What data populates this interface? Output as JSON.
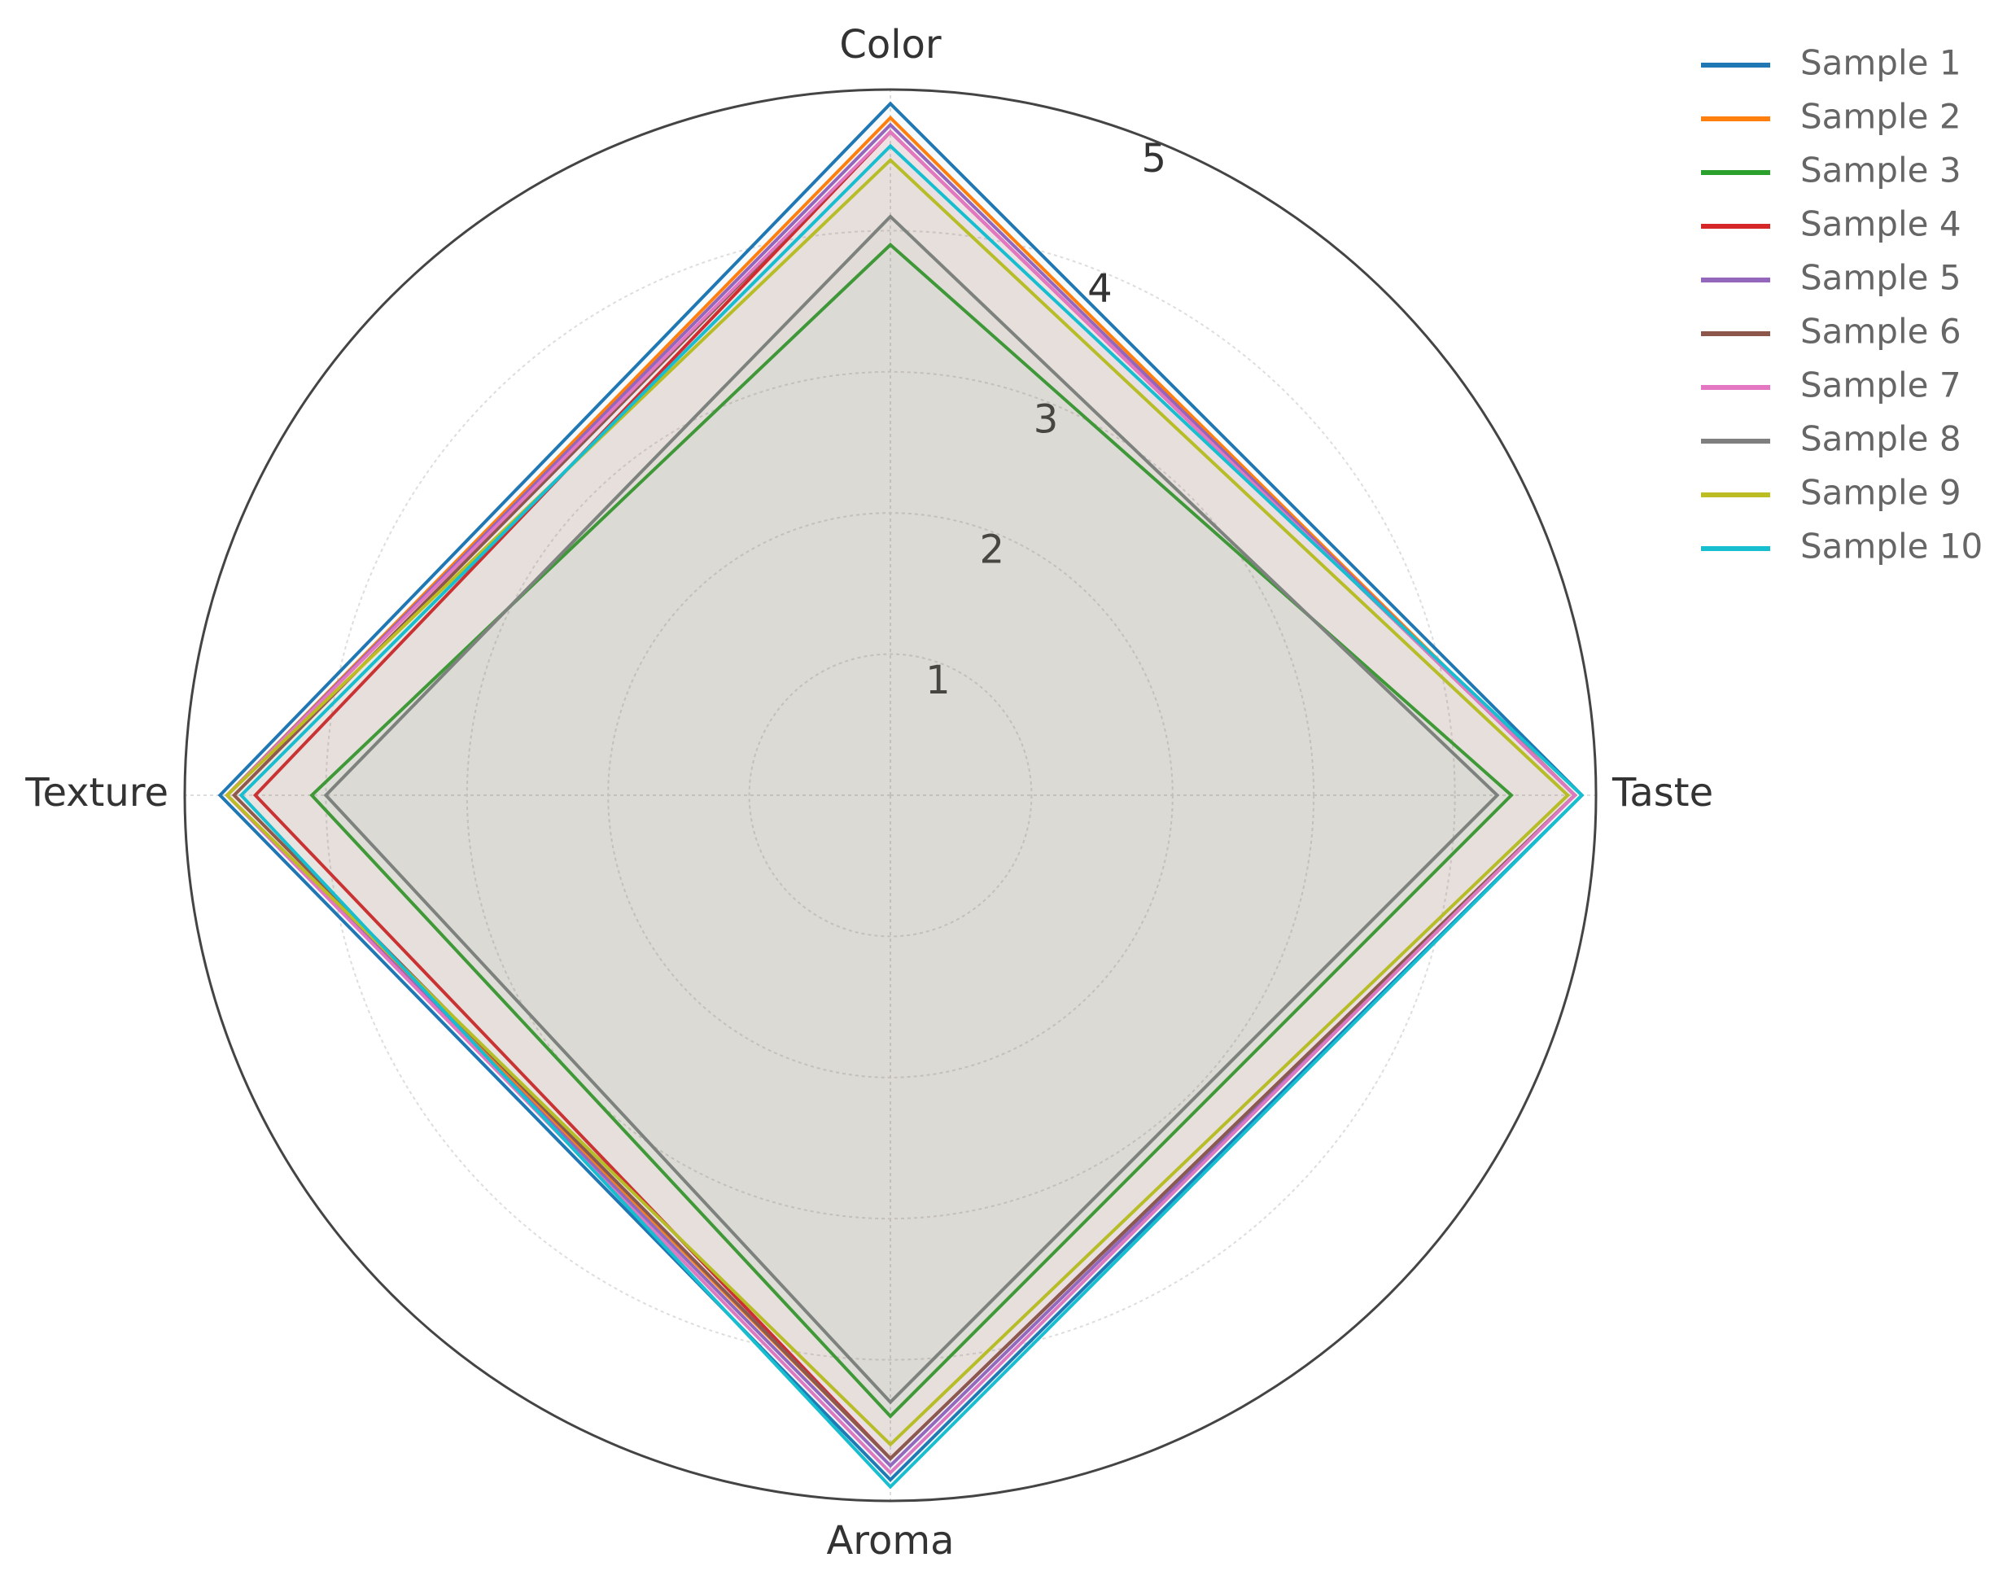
{
  "chart_data": {
    "type": "radar",
    "categories": [
      "Color",
      "Taste",
      "Aroma",
      "Texture"
    ],
    "series": [
      {
        "name": "Sample 1",
        "color": "#1f77b4",
        "values": [
          4.9,
          4.9,
          4.85,
          4.75
        ]
      },
      {
        "name": "Sample 2",
        "color": "#ff7f0e",
        "values": [
          4.8,
          4.85,
          4.7,
          4.7
        ]
      },
      {
        "name": "Sample 3",
        "color": "#2ca02c",
        "values": [
          3.9,
          4.4,
          4.4,
          4.1
        ]
      },
      {
        "name": "Sample 4",
        "color": "#d62728",
        "values": [
          4.7,
          4.85,
          4.7,
          4.5
        ]
      },
      {
        "name": "Sample 5",
        "color": "#9467bd",
        "values": [
          4.75,
          4.85,
          4.75,
          4.7
        ]
      },
      {
        "name": "Sample 6",
        "color": "#8c564b",
        "values": [
          4.7,
          4.85,
          4.7,
          4.65
        ]
      },
      {
        "name": "Sample 7",
        "color": "#e377c2",
        "values": [
          4.7,
          4.85,
          4.8,
          4.7
        ]
      },
      {
        "name": "Sample 8",
        "color": "#7f7f7f",
        "values": [
          4.1,
          4.3,
          4.3,
          4.0
        ]
      },
      {
        "name": "Sample 9",
        "color": "#bcbd22",
        "values": [
          4.5,
          4.8,
          4.6,
          4.7
        ]
      },
      {
        "name": "Sample 10",
        "color": "#17becf",
        "values": [
          4.6,
          4.9,
          4.9,
          4.6
        ]
      }
    ],
    "rlim": [
      0,
      5
    ],
    "rticks": [
      1,
      2,
      3,
      4,
      5
    ],
    "grid": true,
    "legend": "upper right"
  }
}
